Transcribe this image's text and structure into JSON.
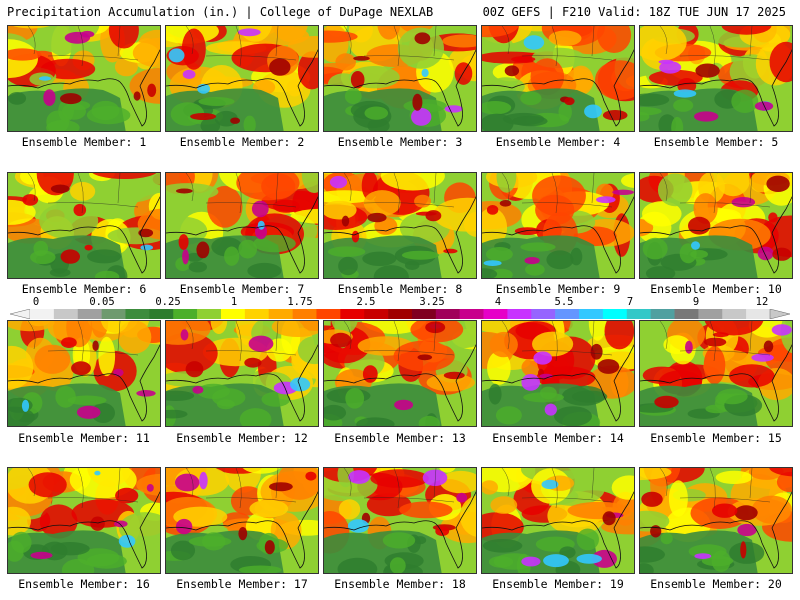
{
  "header": {
    "title_left": "Precipitation Accumulation (in.) | College of DuPage NEXLAB",
    "title_right": "00Z GEFS | F210 Valid: 18Z TUE JUN 17 2025"
  },
  "panels": [
    {
      "label": "Ensemble Member: 1"
    },
    {
      "label": "Ensemble Member: 2"
    },
    {
      "label": "Ensemble Member: 3"
    },
    {
      "label": "Ensemble Member: 4"
    },
    {
      "label": "Ensemble Member: 5"
    },
    {
      "label": "Ensemble Member: 6"
    },
    {
      "label": "Ensemble Member: 7"
    },
    {
      "label": "Ensemble Member: 8"
    },
    {
      "label": "Ensemble Member: 9"
    },
    {
      "label": "Ensemble Member: 10"
    },
    {
      "label": "Ensemble Member: 11"
    },
    {
      "label": "Ensemble Member: 12"
    },
    {
      "label": "Ensemble Member: 13"
    },
    {
      "label": "Ensemble Member: 14"
    },
    {
      "label": "Ensemble Member: 15"
    },
    {
      "label": "Ensemble Member: 16"
    },
    {
      "label": "Ensemble Member: 17"
    },
    {
      "label": "Ensemble Member: 18"
    },
    {
      "label": "Ensemble Member: 19"
    },
    {
      "label": "Ensemble Member: 20"
    }
  ],
  "colorbar": {
    "tick_labels": [
      "0",
      "0.05",
      "0.25",
      "1",
      "1.75",
      "2.5",
      "3.25",
      "4",
      "5.5",
      "7",
      "9",
      "12"
    ],
    "colors": [
      "#f2f2f2",
      "#c8c8c8",
      "#a0a0a0",
      "#6e9a6e",
      "#3c8c3c",
      "#2e7d2e",
      "#4caf2a",
      "#8fd032",
      "#ffff00",
      "#ffd200",
      "#ffaa00",
      "#ff7f00",
      "#ff4500",
      "#e60000",
      "#c80000",
      "#a00000",
      "#800020",
      "#a0005a",
      "#c8008c",
      "#e600c8",
      "#c832ff",
      "#9664ff",
      "#6496ff",
      "#32c8ff",
      "#00ffff",
      "#32c8c8",
      "#50a0a0",
      "#787878",
      "#a0a0a0",
      "#c8c8c8",
      "#e6e6e6"
    ]
  }
}
